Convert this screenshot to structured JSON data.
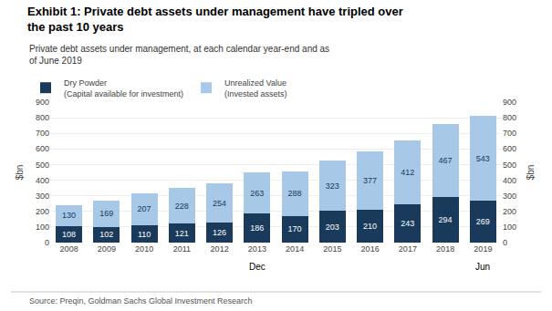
{
  "chart_data": {
    "type": "bar",
    "title": "Exhibit 1: Private debt assets under management have tripled over\nthe past 10 years",
    "subtitle": "Private debt assets under management, at each calendar year-end and as\nof June 2019",
    "source": "Source: Preqin, Goldman Sachs Global Investment Research",
    "categories": [
      "2008",
      "2009",
      "2010",
      "2011",
      "2012",
      "2013",
      "2014",
      "2015",
      "2016",
      "2017",
      "2018",
      "2019"
    ],
    "series": [
      {
        "name": "Dry Powder\n(Capital available for investment)",
        "color": "#1a3a5c",
        "values": [
          108,
          102,
          110,
          121,
          126,
          186,
          170,
          203,
          210,
          243,
          294,
          269
        ]
      },
      {
        "name": "Unrealized Value\n(Invested assets)",
        "color": "#a8c8e8",
        "values": [
          130,
          169,
          207,
          228,
          254,
          263,
          288,
          323,
          377,
          412,
          467,
          543
        ]
      }
    ],
    "stacked": true,
    "data_labels": true,
    "grid": true,
    "legend": "top left",
    "ylabel": "$bn",
    "y2label": "$bn",
    "ylim": [
      0,
      900
    ],
    "yticks": [
      0,
      100,
      200,
      300,
      400,
      500,
      600,
      700,
      800,
      900
    ],
    "y2lim": [
      0,
      900
    ],
    "y2ticks": [
      0,
      100,
      200,
      300,
      400,
      500,
      600,
      700,
      800,
      900
    ],
    "annotations": [
      {
        "text": "Dec",
        "categories": [
          "2008",
          "2018"
        ]
      },
      {
        "text": "Jun",
        "categories": [
          "2019"
        ]
      }
    ]
  }
}
